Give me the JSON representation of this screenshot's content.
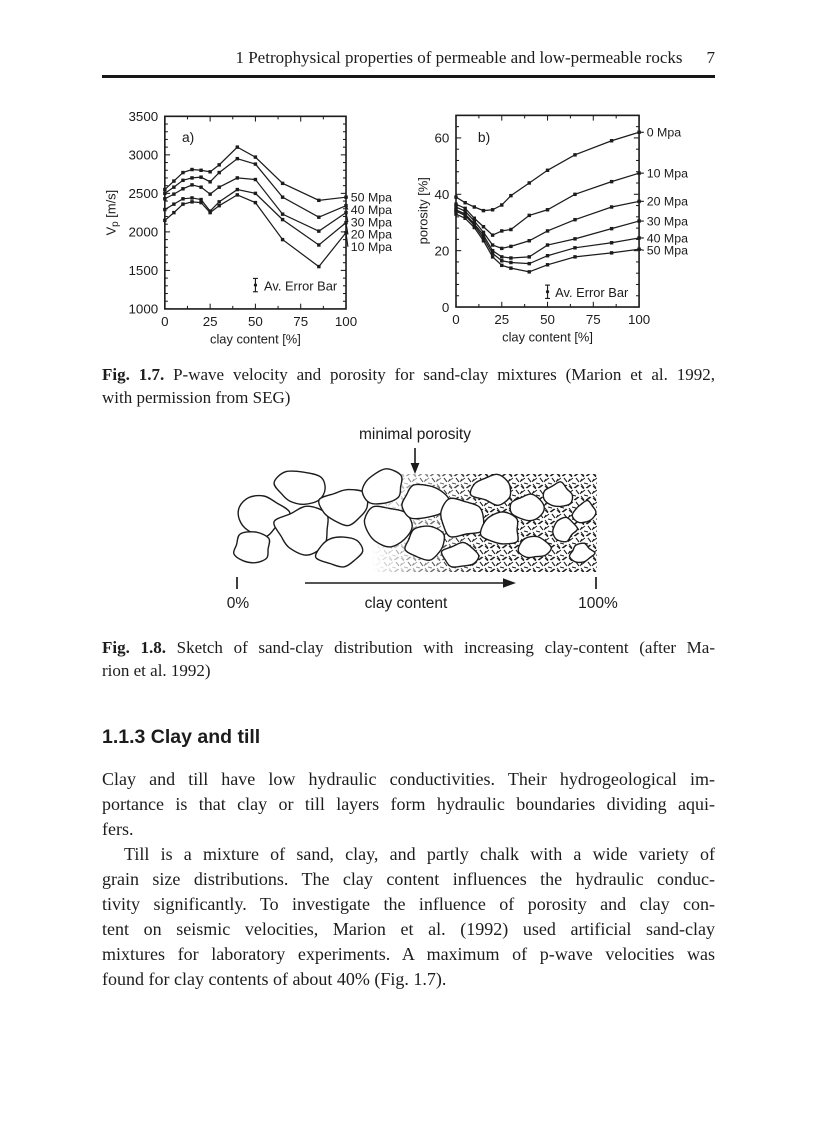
{
  "page": {
    "header_title": "1 Petrophysical properties of permeable and low-permeable rocks",
    "page_number": "7"
  },
  "chart_data": [
    {
      "type": "line",
      "panel_label": "a)",
      "xlabel": "clay content [%]",
      "ylabel": "V_p [m/s]",
      "xlim": [
        0,
        100
      ],
      "ylim": [
        1000,
        3500
      ],
      "xticks": [
        0,
        25,
        50,
        75,
        100
      ],
      "yticks": [
        1000,
        1500,
        2000,
        2500,
        3000,
        3500
      ],
      "grid": false,
      "legend_position": "right-outside",
      "annotation": "Av. Error Bar",
      "x": [
        0,
        5,
        10,
        15,
        20,
        25,
        30,
        40,
        50,
        65,
        85,
        100
      ],
      "series": [
        {
          "name": "50 Mpa",
          "values": [
            2550,
            2660,
            2770,
            2810,
            2800,
            2780,
            2870,
            3100,
            2970,
            2630,
            2410,
            2450
          ]
        },
        {
          "name": "40 Mpa",
          "values": [
            2500,
            2580,
            2670,
            2700,
            2710,
            2650,
            2770,
            2950,
            2880,
            2450,
            2190,
            2340
          ]
        },
        {
          "name": "30 Mpa",
          "values": [
            2430,
            2490,
            2560,
            2610,
            2580,
            2490,
            2580,
            2700,
            2680,
            2230,
            2010,
            2250
          ]
        },
        {
          "name": "20 Mpa",
          "values": [
            2290,
            2360,
            2430,
            2440,
            2420,
            2270,
            2390,
            2550,
            2500,
            2160,
            1830,
            2120
          ]
        },
        {
          "name": "10 Mpa",
          "values": [
            2150,
            2250,
            2360,
            2390,
            2380,
            2250,
            2340,
            2480,
            2380,
            1900,
            1550,
            1990
          ]
        }
      ]
    },
    {
      "type": "line",
      "panel_label": "b)",
      "xlabel": "clay content [%]",
      "ylabel": "porosity [%]",
      "xlim": [
        0,
        100
      ],
      "ylim": [
        0,
        68
      ],
      "xticks": [
        0,
        25,
        50,
        75,
        100
      ],
      "yticks": [
        0,
        20,
        40,
        60
      ],
      "grid": false,
      "legend_position": "right-outside",
      "annotation": "Av. Error Bar",
      "x": [
        0,
        5,
        10,
        15,
        20,
        25,
        30,
        40,
        50,
        65,
        85,
        100
      ],
      "series": [
        {
          "name": "0 Mpa",
          "values": [
            39,
            37,
            35.5,
            34.2,
            34.5,
            36.2,
            39.5,
            44,
            48.5,
            54,
            59,
            62
          ]
        },
        {
          "name": "10 Mpa",
          "values": [
            36.5,
            35,
            31.5,
            28.5,
            25.5,
            27,
            27.5,
            32.5,
            34.5,
            40,
            44.5,
            47.5
          ]
        },
        {
          "name": "20 Mpa",
          "values": [
            35.5,
            34,
            30.5,
            26.5,
            22,
            20.8,
            21.5,
            23.5,
            27,
            31,
            35.5,
            37.5
          ]
        },
        {
          "name": "30 Mpa",
          "values": [
            34.5,
            33,
            29.5,
            25.5,
            20,
            17.8,
            17.4,
            17.8,
            22,
            24.2,
            27.8,
            30.5
          ]
        },
        {
          "name": "40 Mpa",
          "values": [
            34,
            32.5,
            29,
            24.5,
            19,
            16.4,
            15.8,
            15.4,
            18.2,
            21,
            22.8,
            24.5
          ]
        },
        {
          "name": "50 Mpa",
          "values": [
            33,
            31.5,
            28.2,
            23.5,
            17.8,
            14.8,
            13.8,
            12.5,
            15,
            17.8,
            19.2,
            20.5
          ]
        }
      ]
    }
  ],
  "fig17_caption": {
    "label": "Fig. 1.7.",
    "lines": [
      "P-wave velocity and porosity for sand-clay mixtures (Marion et al. 1992,",
      "with permission from SEG)"
    ]
  },
  "sketch": {
    "top_label": "minimal porosity",
    "axis_label": "clay content",
    "left_tick_label": "0%",
    "right_tick_label": "100%"
  },
  "fig18_caption": {
    "label": "Fig. 1.8.",
    "lines": [
      "Sketch of sand-clay distribution with increasing clay-content (after Ma-",
      "rion et al. 1992)"
    ]
  },
  "section": {
    "heading": "1.1.3 Clay and till",
    "paragraphs": [
      {
        "indent": false,
        "lines": [
          "Clay and till have low hydraulic conductivities. Their hydrogeological im-",
          "portance is that clay or till layers form hydraulic boundaries dividing aqui-",
          "fers."
        ]
      },
      {
        "indent": true,
        "lines": [
          "Till is a mixture of sand, clay, and partly chalk with a wide variety of",
          "grain size distributions. The clay content influences the hydraulic conduc-",
          "tivity significantly. To investigate the influence of porosity and clay con-",
          "tent on seismic velocities, Marion et al. (1992) used artificial sand-clay",
          "mixtures for laboratory experiments. A maximum of p-wave velocities was",
          "found for clay contents of about 40% (Fig. 1.7)."
        ]
      }
    ]
  },
  "colors": {
    "ink": "#1c1c1c",
    "paper": "#ffffff"
  }
}
